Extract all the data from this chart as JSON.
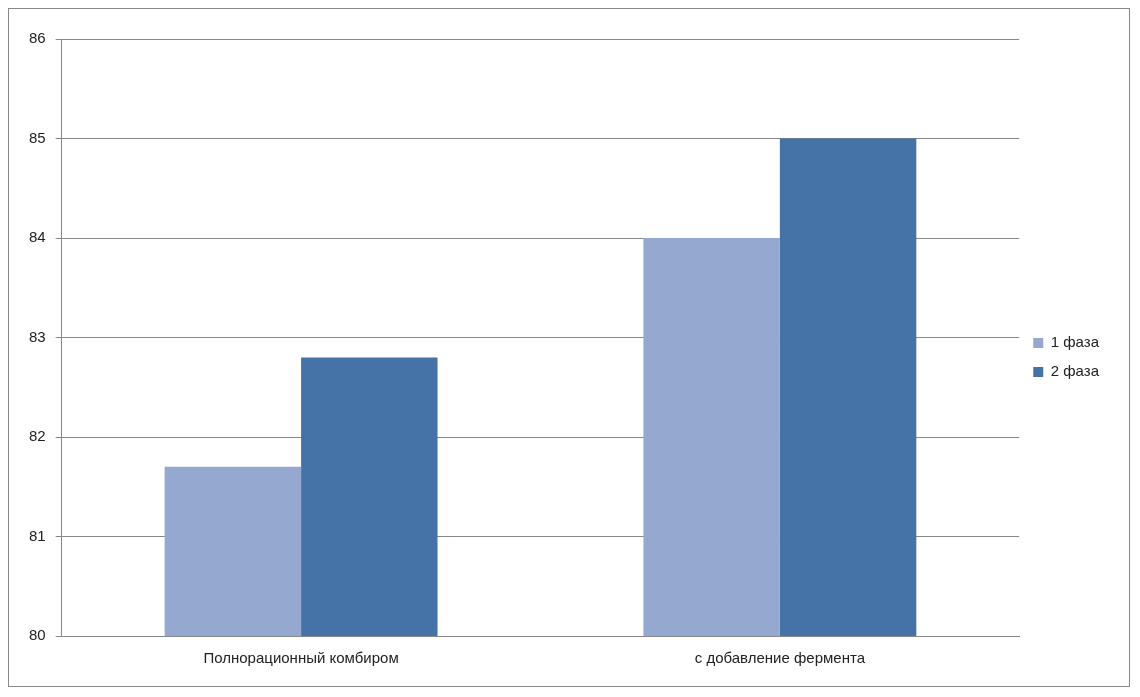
{
  "chart_data": {
    "type": "bar",
    "categories": [
      "Полнорационный комбиром",
      "с добавление фермента"
    ],
    "series": [
      {
        "name": "1 фаза",
        "color": "#95a9d0",
        "values": [
          81.7,
          84
        ]
      },
      {
        "name": "2 фаза",
        "color": "#4573a7",
        "values": [
          82.8,
          85
        ]
      }
    ],
    "ylim": [
      80,
      86
    ],
    "yticks": [
      80,
      81,
      82,
      83,
      84,
      85,
      86
    ],
    "grid": "y",
    "legend": "right"
  }
}
